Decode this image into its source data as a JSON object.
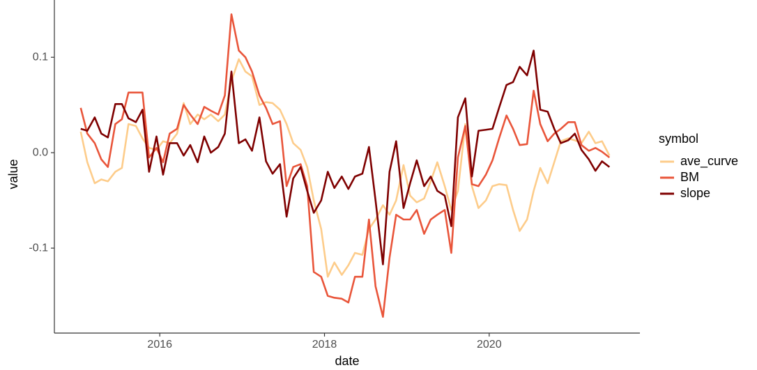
{
  "chart_data": {
    "type": "line",
    "x_label": "date",
    "y_label": "value",
    "legend_title": "symbol",
    "legend_position": "right",
    "xlim": [
      2014.72,
      2021.83
    ],
    "xticks": [
      2016,
      2018,
      2020
    ],
    "ylim": [
      -0.189,
      0.16
    ],
    "yticks": [
      {
        "value": -0.1,
        "label": "-0.1"
      },
      {
        "value": 0,
        "label": "0.0"
      },
      {
        "value": 0.1,
        "label": "0.1"
      }
    ],
    "grid": false,
    "x": [
      2015.04,
      2015.12,
      2015.21,
      2015.29,
      2015.37,
      2015.46,
      2015.54,
      2015.62,
      2015.71,
      2015.79,
      2015.87,
      2015.96,
      2016.04,
      2016.12,
      2016.21,
      2016.29,
      2016.37,
      2016.46,
      2016.54,
      2016.62,
      2016.71,
      2016.79,
      2016.87,
      2016.96,
      2017.04,
      2017.12,
      2017.21,
      2017.29,
      2017.37,
      2017.46,
      2017.54,
      2017.62,
      2017.71,
      2017.79,
      2017.87,
      2017.96,
      2018.04,
      2018.12,
      2018.21,
      2018.29,
      2018.37,
      2018.46,
      2018.54,
      2018.62,
      2018.71,
      2018.79,
      2018.87,
      2018.96,
      2019.04,
      2019.12,
      2019.21,
      2019.29,
      2019.37,
      2019.46,
      2019.54,
      2019.62,
      2019.71,
      2019.79,
      2019.87,
      2019.96,
      2020.04,
      2020.12,
      2020.21,
      2020.29,
      2020.37,
      2020.46,
      2020.54,
      2020.62,
      2020.71,
      2020.79,
      2020.87,
      2020.96,
      2021.04,
      2021.12,
      2021.21,
      2021.29,
      2021.37,
      2021.46
    ],
    "series": [
      {
        "name": "ave_curve",
        "color": "#fdcc8a",
        "values": [
          0.022,
          -0.01,
          -0.032,
          -0.028,
          -0.03,
          -0.02,
          -0.016,
          0.03,
          0.028,
          0.015,
          0.005,
          0.003,
          0.012,
          0.01,
          0.02,
          0.052,
          0.03,
          0.04,
          0.035,
          0.04,
          0.033,
          0.04,
          0.075,
          0.098,
          0.085,
          0.08,
          0.05,
          0.053,
          0.052,
          0.045,
          0.03,
          0.01,
          0.003,
          -0.015,
          -0.05,
          -0.08,
          -0.13,
          -0.115,
          -0.128,
          -0.118,
          -0.105,
          -0.107,
          -0.08,
          -0.07,
          -0.055,
          -0.065,
          -0.05,
          -0.013,
          -0.045,
          -0.052,
          -0.048,
          -0.03,
          -0.01,
          -0.035,
          -0.06,
          -0.04,
          0.03,
          -0.035,
          -0.058,
          -0.05,
          -0.035,
          -0.033,
          -0.034,
          -0.06,
          -0.082,
          -0.07,
          -0.04,
          -0.016,
          -0.032,
          -0.01,
          0.012,
          0.015,
          0.013,
          0.01,
          0.022,
          0.01,
          0.012,
          -0.003
        ]
      },
      {
        "name": "BM",
        "color": "#e9553a",
        "values": [
          0.047,
          0.02,
          0.01,
          -0.007,
          -0.015,
          0.03,
          0.035,
          0.063,
          0.063,
          0.063,
          -0.005,
          0.005,
          -0.01,
          0.02,
          0.025,
          0.05,
          0.04,
          0.03,
          0.048,
          0.044,
          0.04,
          0.06,
          0.145,
          0.107,
          0.1,
          0.085,
          0.06,
          0.047,
          0.03,
          0.033,
          -0.035,
          -0.015,
          -0.012,
          -0.035,
          -0.125,
          -0.13,
          -0.15,
          -0.152,
          -0.153,
          -0.157,
          -0.13,
          -0.13,
          -0.07,
          -0.14,
          -0.172,
          -0.11,
          -0.065,
          -0.07,
          -0.07,
          -0.06,
          -0.085,
          -0.07,
          -0.065,
          -0.06,
          -0.105,
          -0.005,
          0.028,
          -0.033,
          -0.035,
          -0.023,
          -0.008,
          0.015,
          0.039,
          0.025,
          0.008,
          0.009,
          0.065,
          0.03,
          0.012,
          0.02,
          0.025,
          0.032,
          0.032,
          0.008,
          0.002,
          0.005,
          0.001,
          -0.005
        ]
      },
      {
        "name": "slope",
        "color": "#7f0000",
        "values": [
          0.025,
          0.023,
          0.037,
          0.02,
          0.016,
          0.051,
          0.051,
          0.036,
          0.032,
          0.045,
          -0.02,
          0.017,
          -0.023,
          0.01,
          0.01,
          -0.003,
          0.008,
          -0.01,
          0.017,
          0,
          0.006,
          0.02,
          0.085,
          0.01,
          0.014,
          0.002,
          0.037,
          -0.009,
          -0.022,
          -0.012,
          -0.067,
          -0.027,
          -0.015,
          -0.04,
          -0.063,
          -0.05,
          -0.02,
          -0.037,
          -0.025,
          -0.038,
          -0.025,
          -0.022,
          0.006,
          -0.05,
          -0.117,
          -0.02,
          0.012,
          -0.058,
          -0.032,
          -0.008,
          -0.035,
          -0.025,
          -0.04,
          -0.045,
          -0.077,
          0.037,
          0.057,
          -0.025,
          0.023,
          0.024,
          0.025,
          0.047,
          0.071,
          0.074,
          0.09,
          0.081,
          0.107,
          0.045,
          0.043,
          0.025,
          0.01,
          0.013,
          0.02,
          0.003,
          -0.007,
          -0.019,
          -0.009,
          -0.015
        ]
      }
    ]
  }
}
